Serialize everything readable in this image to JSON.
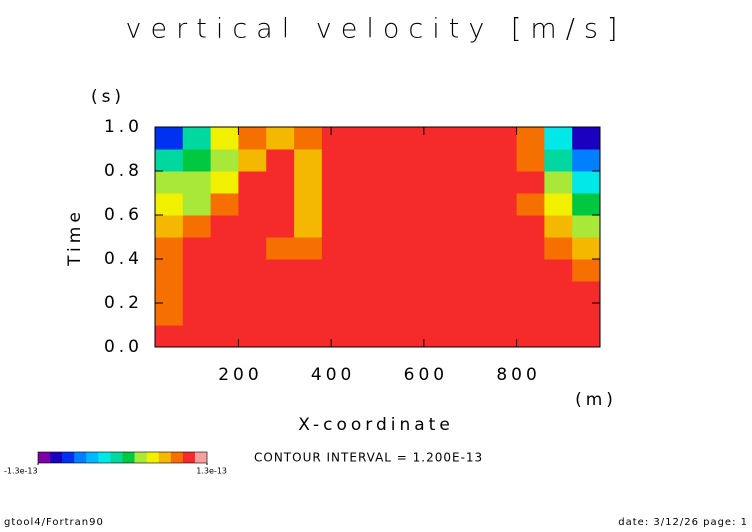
{
  "chart_data": {
    "type": "heatmap",
    "title": "vertical velocity [m/s]",
    "y_unit": "(s)",
    "ylabel": "Time",
    "xlabel": "X-coordinate",
    "x_unit": "(m)",
    "note": "CONTOUR INTERVAL = 1.200E-13",
    "footer_left": "gtool4/Fortran90",
    "footer_right": "date: 3/12/26 page: 1",
    "xlim": [
      20,
      980
    ],
    "xticks": [
      200,
      400,
      600,
      800
    ],
    "ylim": [
      0,
      1
    ],
    "yticks": [
      {
        "value": 0,
        "label": "0.0"
      },
      0.2,
      0.4,
      0.6,
      0.8,
      {
        "value": 1,
        "label": "1.0"
      }
    ],
    "x": [
      50,
      110,
      170,
      230,
      290,
      350,
      410,
      470,
      530,
      590,
      650,
      710,
      770,
      830,
      890,
      950
    ],
    "y": [
      0.05,
      0.15,
      0.25,
      0.35,
      0.45,
      0.55,
      0.65,
      0.75,
      0.85,
      0.95
    ],
    "z": [
      [
        1e-13,
        1e-13,
        1e-13,
        1e-13,
        1e-13,
        1e-13,
        1e-13,
        1e-13,
        1e-13,
        1e-13,
        1e-13,
        1e-13,
        1e-13,
        1e-13,
        1e-13,
        1e-13
      ],
      [
        8.4e-14,
        1e-13,
        1e-13,
        1e-13,
        1e-13,
        1e-13,
        1e-13,
        1e-13,
        1e-13,
        1e-13,
        1e-13,
        1e-13,
        1e-13,
        1e-13,
        1e-13,
        1e-13
      ],
      [
        8.4e-14,
        1e-13,
        1e-13,
        1e-13,
        1e-13,
        1e-13,
        1e-13,
        1e-13,
        1e-13,
        1e-13,
        1e-13,
        1e-13,
        1e-13,
        1e-13,
        1e-13,
        1e-13
      ],
      [
        8.4e-14,
        1e-13,
        1e-13,
        1e-13,
        1e-13,
        1e-13,
        1e-13,
        1e-13,
        1e-13,
        1e-13,
        1e-13,
        1e-13,
        1e-13,
        1e-13,
        1e-13,
        8.4e-14
      ],
      [
        8.4e-14,
        1e-13,
        1e-13,
        1e-13,
        8.4e-14,
        8.4e-14,
        1e-13,
        1e-13,
        1e-13,
        1e-13,
        1e-13,
        1e-13,
        1e-13,
        1e-13,
        8.4e-14,
        6.5e-14
      ],
      [
        6.5e-14,
        8.4e-14,
        1e-13,
        1e-13,
        1e-13,
        6.5e-14,
        1e-13,
        1e-13,
        1e-13,
        1e-13,
        1e-13,
        1e-13,
        1e-13,
        1e-13,
        6.5e-14,
        2.8e-14
      ],
      [
        4.6e-14,
        2.8e-14,
        8.4e-14,
        1e-13,
        1e-13,
        6.5e-14,
        1e-13,
        1e-13,
        1e-13,
        1e-13,
        1e-13,
        1e-13,
        1e-13,
        8.4e-14,
        4.6e-14,
        9e-15
      ],
      [
        2.8e-14,
        2.8e-14,
        4.6e-14,
        1e-13,
        1e-13,
        6.5e-14,
        1e-13,
        1e-13,
        1e-13,
        1e-13,
        1e-13,
        1e-13,
        1e-13,
        1e-13,
        2.8e-14,
        -2.8e-14
      ],
      [
        -9e-15,
        9e-15,
        2.8e-14,
        6.5e-14,
        1e-13,
        6.5e-14,
        1e-13,
        1e-13,
        1e-13,
        1e-13,
        1e-13,
        1e-13,
        1e-13,
        8.4e-14,
        -9e-15,
        -6.5e-14
      ],
      [
        -8.5e-14,
        -9e-15,
        4.6e-14,
        8.4e-14,
        6.5e-14,
        8.4e-14,
        1e-13,
        1e-13,
        1e-13,
        1e-13,
        1e-13,
        1e-13,
        1e-13,
        8.4e-14,
        -2.8e-14,
        -1e-13
      ]
    ],
    "clim": [
      -1.3e-13,
      1.3e-13
    ],
    "colors": [
      "#7a00a8",
      "#1c00c0",
      "#0030f0",
      "#0080ff",
      "#00b8ff",
      "#00e8e8",
      "#00d8a0",
      "#00c840",
      "#a8e838",
      "#f0f000",
      "#f5b800",
      "#f57000",
      "#f52a2a",
      "#f5a0a0"
    ],
    "cticks": [
      {
        "value": -1.3e-13,
        "label": "-1.3e-13"
      },
      {
        "value": 1.3e-13,
        "label": "1.3e-13"
      }
    ]
  }
}
